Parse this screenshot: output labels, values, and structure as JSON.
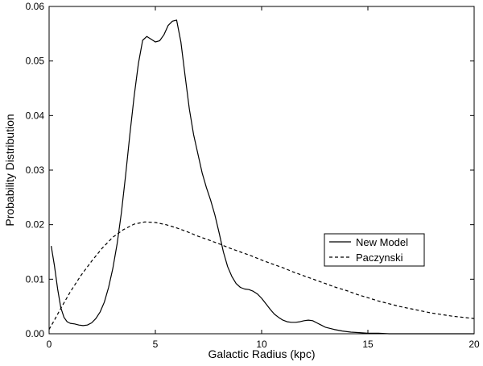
{
  "chart_data": {
    "type": "line",
    "title": "",
    "xlabel": "Galactic Radius (kpc)",
    "ylabel": "Probability Distribution",
    "xlim": [
      0,
      20
    ],
    "ylim": [
      0,
      0.06
    ],
    "x_ticks": [
      {
        "value": 0,
        "label": "0"
      },
      {
        "value": 5,
        "label": "5"
      },
      {
        "value": 10,
        "label": "10"
      },
      {
        "value": 15,
        "label": "15"
      },
      {
        "value": 20,
        "label": "20"
      }
    ],
    "y_ticks": [
      {
        "value": 0,
        "label": "0.00"
      },
      {
        "value": 0.01,
        "label": "0.01"
      },
      {
        "value": 0.02,
        "label": "0.02"
      },
      {
        "value": 0.03,
        "label": "0.03"
      },
      {
        "value": 0.04,
        "label": "0.04"
      },
      {
        "value": 0.05,
        "label": "0.05"
      },
      {
        "value": 0.06,
        "label": "0.06"
      }
    ],
    "grid": false,
    "legend_position": "right",
    "series": [
      {
        "name": "New Model",
        "line_style": "solid",
        "color": "#000000",
        "x": [
          0.1,
          0.25,
          0.4,
          0.55,
          0.7,
          0.85,
          1.0,
          1.2,
          1.4,
          1.6,
          1.8,
          2.0,
          2.2,
          2.4,
          2.6,
          2.8,
          3.0,
          3.2,
          3.4,
          3.6,
          3.8,
          4.0,
          4.2,
          4.4,
          4.6,
          4.8,
          5.0,
          5.2,
          5.4,
          5.6,
          5.8,
          6.0,
          6.2,
          6.4,
          6.6,
          6.8,
          7.0,
          7.2,
          7.4,
          7.6,
          7.8,
          8.0,
          8.2,
          8.4,
          8.6,
          8.8,
          9.0,
          9.2,
          9.4,
          9.6,
          9.8,
          10.0,
          10.2,
          10.4,
          10.6,
          10.8,
          11.0,
          11.2,
          11.4,
          11.6,
          11.8,
          12.0,
          12.2,
          12.4,
          12.6,
          12.8,
          13.0,
          13.4,
          13.8,
          14.2,
          14.6,
          15.0,
          15.5,
          16.0,
          16.5,
          17.0,
          18.0,
          19.0,
          20.0
        ],
        "y": [
          0.0161,
          0.0125,
          0.0082,
          0.0048,
          0.003,
          0.0022,
          0.0019,
          0.0018,
          0.0016,
          0.0015,
          0.0016,
          0.002,
          0.0028,
          0.004,
          0.0058,
          0.0085,
          0.012,
          0.0165,
          0.0222,
          0.029,
          0.0365,
          0.0435,
          0.0495,
          0.0538,
          0.0545,
          0.054,
          0.0535,
          0.0537,
          0.0548,
          0.0565,
          0.0573,
          0.0575,
          0.0535,
          0.0472,
          0.0412,
          0.0365,
          0.033,
          0.0295,
          0.0268,
          0.0245,
          0.0218,
          0.0185,
          0.015,
          0.0123,
          0.0105,
          0.0092,
          0.0085,
          0.0082,
          0.0081,
          0.0078,
          0.0073,
          0.0065,
          0.0055,
          0.0045,
          0.0036,
          0.003,
          0.0025,
          0.0022,
          0.0021,
          0.0021,
          0.0022,
          0.0024,
          0.0025,
          0.0024,
          0.002,
          0.0016,
          0.0012,
          0.0008,
          0.0005,
          0.0003,
          0.0002,
          0.0001,
          0.0001,
          0.0,
          0.0,
          0.0,
          0.0,
          0.0,
          0.0
        ]
      },
      {
        "name": "Paczynski",
        "line_style": "dashed",
        "color": "#000000",
        "x": [
          0.0,
          0.25,
          0.5,
          0.75,
          1.0,
          1.5,
          2.0,
          2.5,
          3.0,
          3.5,
          4.0,
          4.5,
          5.0,
          5.5,
          6.0,
          6.5,
          7.0,
          7.5,
          8.0,
          8.5,
          9.0,
          9.5,
          10.0,
          10.5,
          11.0,
          11.5,
          12.0,
          12.5,
          13.0,
          13.5,
          14.0,
          14.5,
          15.0,
          15.5,
          16.0,
          16.5,
          17.0,
          17.5,
          18.0,
          18.5,
          19.0,
          19.5,
          20.0
        ],
        "y": [
          0.0008,
          0.0025,
          0.0043,
          0.006,
          0.0077,
          0.0107,
          0.0133,
          0.0157,
          0.0177,
          0.0191,
          0.0201,
          0.0205,
          0.0204,
          0.02,
          0.0194,
          0.0187,
          0.0179,
          0.0172,
          0.0165,
          0.0157,
          0.015,
          0.0143,
          0.0135,
          0.0128,
          0.0121,
          0.0113,
          0.0106,
          0.0099,
          0.0092,
          0.0085,
          0.0079,
          0.0072,
          0.0066,
          0.006,
          0.0055,
          0.005,
          0.0046,
          0.0042,
          0.0038,
          0.0035,
          0.0032,
          0.003,
          0.0028
        ]
      }
    ]
  }
}
